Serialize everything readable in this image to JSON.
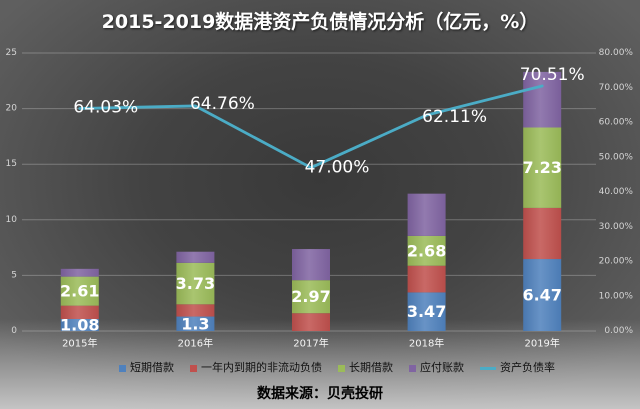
{
  "chart_data": {
    "type": "bar",
    "stacked": true,
    "title": "2015-2019数据港资产负债情况分析（亿元，%）",
    "categories": [
      "2015年",
      "2016年",
      "2017年",
      "2018年",
      "2019年"
    ],
    "series": [
      {
        "name": "短期借款",
        "type": "bar",
        "color": "#4F81BD",
        "values": [
          1.08,
          1.3,
          0,
          3.47,
          6.47
        ],
        "labels": [
          "1.08",
          "1.3",
          null,
          "3.47",
          "6.47"
        ]
      },
      {
        "name": "一年内到期的非流动负债",
        "type": "bar",
        "color": "#C0504D",
        "values": [
          1.2,
          1.1,
          1.6,
          2.4,
          4.6
        ]
      },
      {
        "name": "长期借款",
        "type": "bar",
        "color": "#9BBB59",
        "values": [
          2.61,
          3.73,
          2.97,
          2.68,
          7.23
        ],
        "labels": [
          "2.61",
          "3.73",
          "2.97",
          "2.68",
          "7.23"
        ]
      },
      {
        "name": "应付账款",
        "type": "bar",
        "color": "#8064A2",
        "values": [
          0.7,
          1.0,
          2.8,
          3.8,
          5.0
        ]
      },
      {
        "name": "资产负债率",
        "type": "line",
        "secondary_axis": true,
        "color": "#4BACC6",
        "values": [
          64.03,
          64.76,
          47.0,
          62.11,
          70.51
        ],
        "labels": [
          "64.03%",
          "64.76%",
          "47.00%",
          "62.11%",
          "70.51%"
        ]
      }
    ],
    "y_axis": {
      "min": 0,
      "max": 25,
      "ticks": [
        "0",
        "5",
        "10",
        "15",
        "20",
        "25"
      ]
    },
    "y2_axis": {
      "min": 0,
      "max": 80,
      "ticks": [
        "0.00%",
        "10.00%",
        "20.00%",
        "30.00%",
        "40.00%",
        "50.00%",
        "60.00%",
        "70.00%",
        "80.00%"
      ]
    },
    "grid": true,
    "legend": "bottom"
  },
  "source": "数据来源：贝壳投研"
}
